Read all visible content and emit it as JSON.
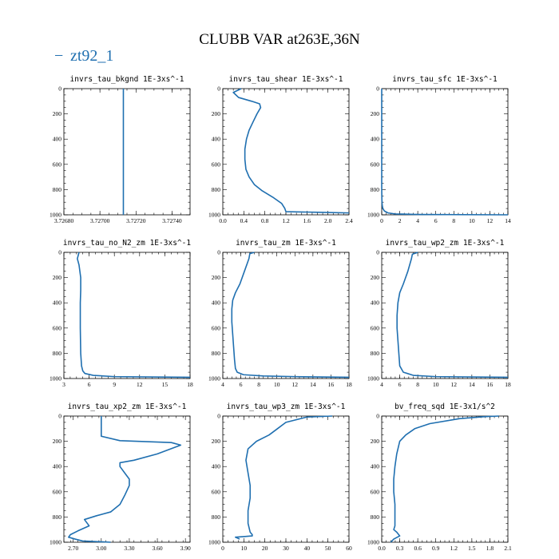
{
  "figure": {
    "title": "CLUBB VAR at263E,36N",
    "legend": {
      "label": "zt92_1",
      "marker": "−",
      "color": "#1f6fb0"
    }
  },
  "chart_data": [
    {
      "type": "line",
      "title": "invrs_tau_bkgnd   1E-3xs^-1",
      "xlim": [
        3.7268,
        3.7275
      ],
      "ylim": [
        1000,
        0
      ],
      "xticks": [
        "3.72680",
        "3.72700",
        "3.72720",
        "3.72740"
      ],
      "xtick_values": [
        3.7268,
        3.727,
        3.7272,
        3.7274
      ],
      "yticks": [
        "0",
        "200",
        "400",
        "600",
        "800",
        "1000"
      ],
      "series": [
        {
          "name": "zt92_1",
          "x": [
            3.72713,
            3.72713
          ],
          "y": [
            0,
            1000
          ]
        }
      ]
    },
    {
      "type": "line",
      "title": "invrs_tau_shear   1E-3xs^-1",
      "xlim": [
        0,
        2.4
      ],
      "ylim": [
        1000,
        0
      ],
      "xticks": [
        "0.0",
        "0.4",
        "0.8",
        "1.2",
        "1.6",
        "2.0",
        "2.4"
      ],
      "xtick_values": [
        0,
        0.4,
        0.8,
        1.2,
        1.6,
        2.0,
        2.4
      ],
      "yticks": [
        "0",
        "200",
        "400",
        "600",
        "800",
        "1000"
      ],
      "series": [
        {
          "name": "zt92_1",
          "x": [
            0.35,
            0.2,
            0.3,
            0.55,
            0.7,
            0.72,
            0.65,
            0.58,
            0.5,
            0.45,
            0.42,
            0.42,
            0.44,
            0.5,
            0.6,
            0.75,
            0.95,
            1.12,
            1.18,
            1.2,
            1.8,
            2.4
          ],
          "y": [
            0,
            30,
            70,
            100,
            120,
            150,
            200,
            260,
            330,
            400,
            480,
            560,
            640,
            700,
            760,
            810,
            860,
            910,
            950,
            975,
            980,
            985
          ]
        }
      ]
    },
    {
      "type": "line",
      "title": "invrs_tau_sfc   1E-3xs^-1",
      "xlim": [
        0,
        14
      ],
      "ylim": [
        1000,
        0
      ],
      "xticks": [
        "0",
        "2",
        "4",
        "6",
        "8",
        "10",
        "12",
        "14"
      ],
      "xtick_values": [
        0,
        2,
        4,
        6,
        8,
        10,
        12,
        14
      ],
      "yticks": [
        "0",
        "200",
        "400",
        "600",
        "800",
        "1000"
      ],
      "series": [
        {
          "name": "zt92_1",
          "x": [
            0,
            0,
            0.02,
            0.05,
            0.12,
            0.3,
            0.7,
            1.5,
            4,
            14
          ],
          "y": [
            0,
            800,
            880,
            920,
            950,
            970,
            985,
            993,
            997,
            1000
          ]
        }
      ]
    },
    {
      "type": "line",
      "title": "invrs_tau_no_N2_zm   1E-3xs^-1",
      "xlim": [
        3,
        18
      ],
      "ylim": [
        1000,
        0
      ],
      "xticks": [
        "3",
        "6",
        "9",
        "12",
        "15",
        "18"
      ],
      "xtick_values": [
        3,
        6,
        9,
        12,
        15,
        18
      ],
      "yticks": [
        "0",
        "200",
        "400",
        "600",
        "800",
        "1000"
      ],
      "series": [
        {
          "name": "zt92_1",
          "x": [
            4.8,
            4.6,
            4.8,
            5.0,
            5.0,
            4.95,
            4.95,
            5.0,
            5.1,
            5.25,
            5.5,
            6.5,
            9,
            18
          ],
          "y": [
            0,
            50,
            100,
            200,
            300,
            400,
            600,
            800,
            900,
            940,
            960,
            975,
            985,
            990
          ]
        }
      ]
    },
    {
      "type": "line",
      "title": "invrs_tau_zm   1E-3xs^-1",
      "xlim": [
        4,
        18
      ],
      "ylim": [
        1000,
        0
      ],
      "xticks": [
        "4",
        "6",
        "8",
        "10",
        "12",
        "14",
        "16",
        "18"
      ],
      "xtick_values": [
        4,
        6,
        8,
        10,
        12,
        14,
        16,
        18
      ],
      "yticks": [
        "0",
        "200",
        "400",
        "600",
        "800",
        "1000"
      ],
      "series": [
        {
          "name": "zt92_1",
          "x": [
            7.5,
            7.0,
            6.9,
            6.4,
            5.9,
            5.4,
            5.1,
            5.0,
            5.0,
            5.1,
            5.2,
            5.3,
            5.4,
            5.6,
            6.3,
            8.5,
            12,
            18
          ],
          "y": [
            0,
            10,
            50,
            150,
            250,
            320,
            380,
            450,
            550,
            650,
            750,
            850,
            920,
            950,
            970,
            980,
            985,
            990
          ]
        }
      ]
    },
    {
      "type": "line",
      "title": "invrs_tau_wp2_zm   1E-3xs^-1",
      "xlim": [
        4,
        18
      ],
      "ylim": [
        1000,
        0
      ],
      "xticks": [
        "4",
        "6",
        "8",
        "10",
        "12",
        "14",
        "16",
        "18"
      ],
      "xtick_values": [
        4,
        6,
        8,
        10,
        12,
        14,
        16,
        18
      ],
      "yticks": [
        "0",
        "200",
        "400",
        "600",
        "800",
        "1000"
      ],
      "series": [
        {
          "name": "zt92_1",
          "x": [
            8,
            7.4,
            7.3,
            6.9,
            6.4,
            6.0,
            5.8,
            5.7,
            5.7,
            5.8,
            5.9,
            6.0,
            6.4,
            7.5,
            10,
            18
          ],
          "y": [
            0,
            15,
            50,
            150,
            250,
            320,
            400,
            500,
            600,
            700,
            800,
            900,
            950,
            975,
            985,
            990
          ]
        }
      ]
    },
    {
      "type": "line",
      "title": "invrs_tau_xp2_zm   1E-3xs^-1",
      "xlim": [
        2.6,
        3.95
      ],
      "ylim": [
        1000,
        0
      ],
      "xticks": [
        "2.70",
        "3.00",
        "3.30",
        "3.60",
        "3.90"
      ],
      "xtick_values": [
        2.7,
        3.0,
        3.3,
        3.6,
        3.9
      ],
      "yticks": [
        "0",
        "200",
        "400",
        "600",
        "800",
        "1000"
      ],
      "series": [
        {
          "name": "zt92_1",
          "x": [
            3.0,
            3.0,
            3.0,
            3.2,
            3.75,
            3.85,
            3.6,
            3.35,
            3.2,
            3.2,
            3.25,
            3.3,
            3.3,
            3.25,
            3.2,
            3.1,
            2.95,
            2.82,
            2.87,
            2.75,
            2.67,
            2.65,
            2.72,
            2.8,
            3.1
          ],
          "y": [
            0,
            100,
            160,
            195,
            210,
            230,
            300,
            350,
            370,
            400,
            450,
            500,
            550,
            630,
            700,
            760,
            790,
            820,
            870,
            910,
            940,
            960,
            975,
            990,
            1000
          ]
        }
      ]
    },
    {
      "type": "line",
      "title": "invrs_tau_wp3_zm   1E-3xs^-1",
      "xlim": [
        0,
        60
      ],
      "ylim": [
        1000,
        0
      ],
      "xticks": [
        "0",
        "10",
        "20",
        "30",
        "40",
        "50",
        "60"
      ],
      "xtick_values": [
        0,
        10,
        20,
        30,
        40,
        50,
        60
      ],
      "yticks": [
        "0",
        "200",
        "400",
        "600",
        "800",
        "1000"
      ],
      "series": [
        {
          "name": "zt92_1",
          "x": [
            52,
            40,
            30,
            26,
            22,
            16,
            12,
            11,
            12,
            13,
            13,
            12,
            12,
            13,
            14,
            14,
            10,
            6,
            8
          ],
          "y": [
            0,
            8,
            50,
            100,
            150,
            200,
            260,
            350,
            450,
            550,
            650,
            750,
            850,
            920,
            940,
            950,
            955,
            960,
            975
          ]
        }
      ]
    },
    {
      "type": "line",
      "title": "bv_freq_sqd   1E-3x1/s^2",
      "xlim": [
        0,
        2.1
      ],
      "ylim": [
        1000,
        0
      ],
      "xticks": [
        "0.0",
        "0.3",
        "0.6",
        "0.9",
        "1.2",
        "1.5",
        "1.8",
        "2.1"
      ],
      "xtick_values": [
        0,
        0.3,
        0.6,
        0.9,
        1.2,
        1.5,
        1.8,
        2.1
      ],
      "yticks": [
        "0",
        "200",
        "400",
        "600",
        "800",
        "1000"
      ],
      "series": [
        {
          "name": "zt92_1",
          "x": [
            1.95,
            1.7,
            1.3,
            0.8,
            0.55,
            0.4,
            0.3,
            0.25,
            0.22,
            0.2,
            0.2,
            0.22,
            0.22,
            0.22,
            0.2,
            0.25,
            0.3,
            0.2,
            0.15
          ],
          "y": [
            0,
            5,
            20,
            60,
            100,
            150,
            200,
            300,
            400,
            500,
            600,
            700,
            800,
            870,
            900,
            920,
            950,
            975,
            1000
          ]
        }
      ]
    }
  ]
}
